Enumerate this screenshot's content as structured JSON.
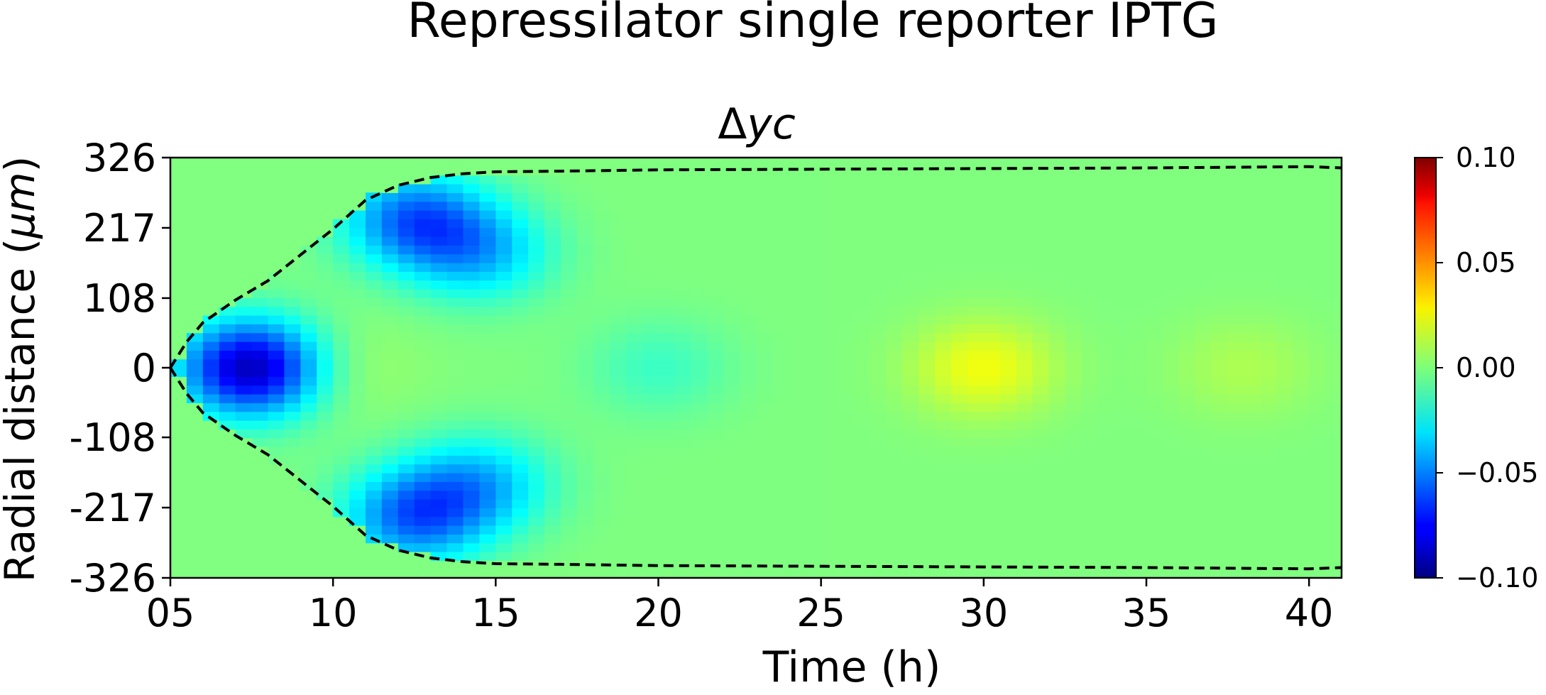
{
  "chart_data": {
    "type": "heatmap",
    "title": "Repressilator single reporter IPTG",
    "subtitle": "Δyc",
    "subtitle_symbol": "Δ",
    "subtitle_italic": "yc",
    "xlabel": "Time (h)",
    "ylabel": "Radial distance (μm)",
    "ylabel_text": "Radial distance (",
    "ylabel_unit": "μm",
    "ylabel_close": ")",
    "xlim": [
      5,
      41
    ],
    "ylim": [
      -326,
      326
    ],
    "xticks": [
      {
        "value": 5,
        "label": "05"
      },
      {
        "value": 10,
        "label": "10"
      },
      {
        "value": 15,
        "label": "15"
      },
      {
        "value": 20,
        "label": "20"
      },
      {
        "value": 25,
        "label": "25"
      },
      {
        "value": 30,
        "label": "30"
      },
      {
        "value": 35,
        "label": "35"
      },
      {
        "value": 40,
        "label": "40"
      }
    ],
    "yticks": [
      {
        "value": 326,
        "label": "326"
      },
      {
        "value": 217,
        "label": "217"
      },
      {
        "value": 108,
        "label": "108"
      },
      {
        "value": 0,
        "label": "0"
      },
      {
        "value": -108,
        "label": "-108"
      },
      {
        "value": -217,
        "label": "-217"
      },
      {
        "value": -326,
        "label": "-326"
      }
    ],
    "colormap": "jet",
    "colorbar": {
      "range": [
        -0.1,
        0.1
      ],
      "ticks": [
        {
          "value": 0.1,
          "label": "0.10"
        },
        {
          "value": 0.05,
          "label": "0.05"
        },
        {
          "value": 0.0,
          "label": "0.00"
        },
        {
          "value": -0.05,
          "label": "−0.05"
        },
        {
          "value": -0.1,
          "label": "−0.10"
        }
      ]
    },
    "features": [
      {
        "t": 7.5,
        "r": 0,
        "value": -0.1
      },
      {
        "t": 12.5,
        "r": 230,
        "value": -0.06
      },
      {
        "t": 12.5,
        "r": -230,
        "value": -0.06
      },
      {
        "t": 14.5,
        "r": 180,
        "value": -0.04
      },
      {
        "t": 14.5,
        "r": -180,
        "value": -0.04
      },
      {
        "t": 10.0,
        "r": 0,
        "value": 0.01
      },
      {
        "t": 20.0,
        "r": 0,
        "value": -0.015
      },
      {
        "t": 30.0,
        "r": 0,
        "value": 0.025
      },
      {
        "t": 38.0,
        "r": 0,
        "value": 0.01
      }
    ],
    "background_value": 0.0,
    "colony_edge_contour": {
      "style": "dashed",
      "color": "#000000",
      "points": [
        [
          5.0,
          0
        ],
        [
          5.5,
          40
        ],
        [
          6.0,
          70
        ],
        [
          7.0,
          105
        ],
        [
          8.0,
          135
        ],
        [
          9.0,
          175
        ],
        [
          10.0,
          215
        ],
        [
          11.0,
          260
        ],
        [
          12.0,
          283
        ],
        [
          13.0,
          295
        ],
        [
          14.0,
          301
        ],
        [
          15.0,
          304
        ],
        [
          17.0,
          305
        ],
        [
          20.0,
          307
        ],
        [
          25.0,
          308
        ],
        [
          30.0,
          309
        ],
        [
          35.0,
          310
        ],
        [
          40.0,
          312
        ],
        [
          41.0,
          310
        ]
      ]
    }
  }
}
